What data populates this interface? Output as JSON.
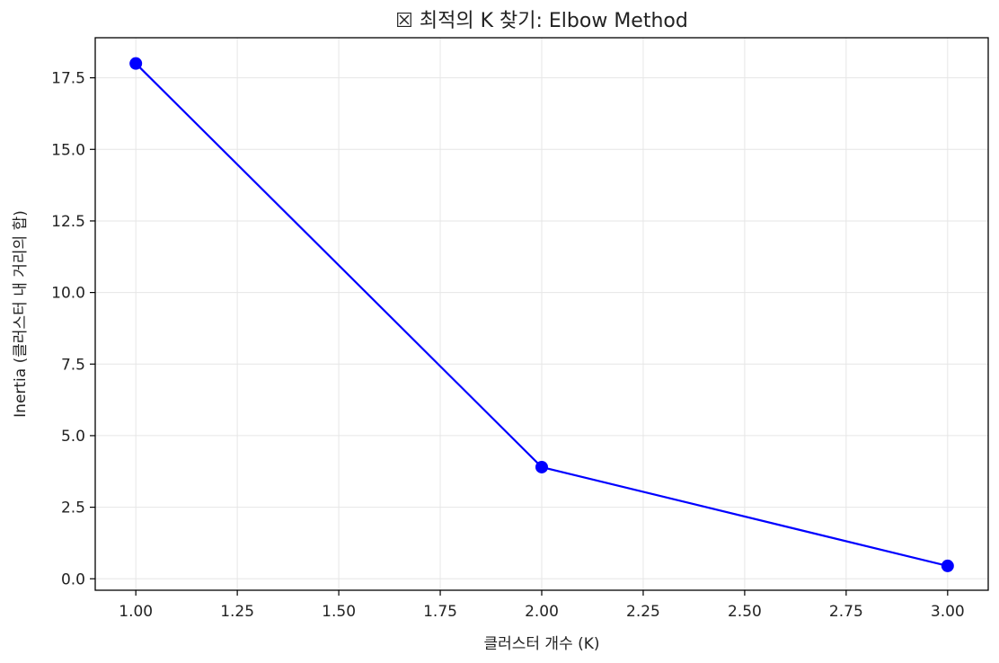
{
  "chart_data": {
    "type": "line",
    "title": "☒ 최적의 K 찾기: Elbow Method",
    "xlabel": "클러스터 개수 (K)",
    "ylabel": "Inertia (클러스터 내 거리의 합)",
    "x": [
      1,
      2,
      3
    ],
    "series": [
      {
        "values": [
          18.0,
          3.9,
          0.45
        ],
        "color": "#0000ff",
        "marker": "circle"
      }
    ],
    "xlim": [
      0.9,
      3.1
    ],
    "ylim": [
      -0.4,
      18.9
    ],
    "xticks": [
      "1.00",
      "1.25",
      "1.50",
      "1.75",
      "2.00",
      "2.25",
      "2.50",
      "2.75",
      "3.00"
    ],
    "xtick_values": [
      1.0,
      1.25,
      1.5,
      1.75,
      2.0,
      2.25,
      2.5,
      2.75,
      3.0
    ],
    "yticks": [
      "0.0",
      "2.5",
      "5.0",
      "7.5",
      "10.0",
      "12.5",
      "15.0",
      "17.5"
    ],
    "ytick_values": [
      0,
      2.5,
      5.0,
      7.5,
      10.0,
      12.5,
      15.0,
      17.5
    ],
    "grid": true,
    "grid_color": "#e6e6e6",
    "axis_color": "#000000"
  }
}
